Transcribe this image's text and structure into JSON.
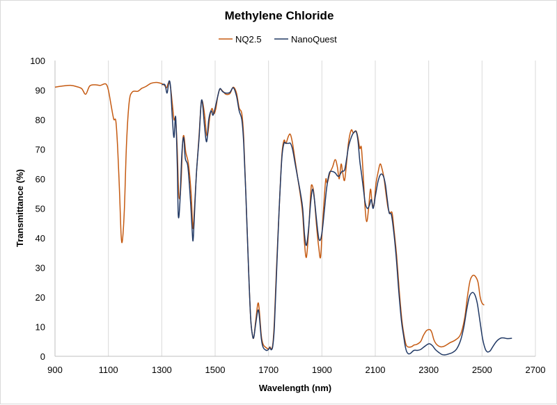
{
  "chart_data": {
    "type": "line",
    "title": "Methylene Chloride",
    "xlabel": "Wavelength (nm)",
    "ylabel": "Transmittance (%)",
    "xlim": [
      900,
      2700
    ],
    "ylim": [
      0,
      100
    ],
    "x_ticks": [
      900,
      1100,
      1300,
      1500,
      1700,
      1900,
      2100,
      2300,
      2500,
      2700
    ],
    "y_ticks": [
      0,
      10,
      20,
      30,
      40,
      50,
      60,
      70,
      80,
      90,
      100
    ],
    "grid": "vertical",
    "legend_position": "top-center",
    "series": [
      {
        "name": "NQ2.5",
        "color": "#c55a11",
        "points": [
          [
            900,
            91
          ],
          [
            930,
            91.4
          ],
          [
            960,
            91.6
          ],
          [
            980,
            91.2
          ],
          [
            1000,
            90.5
          ],
          [
            1015,
            88.6
          ],
          [
            1030,
            91.4
          ],
          [
            1050,
            91.8
          ],
          [
            1070,
            91.6
          ],
          [
            1090,
            92.1
          ],
          [
            1100,
            90
          ],
          [
            1110,
            85
          ],
          [
            1120,
            80.2
          ],
          [
            1128,
            79.5
          ],
          [
            1135,
            70
          ],
          [
            1142,
            55
          ],
          [
            1148,
            40.5
          ],
          [
            1153,
            39.5
          ],
          [
            1160,
            50
          ],
          [
            1168,
            72
          ],
          [
            1178,
            86
          ],
          [
            1190,
            89.4
          ],
          [
            1210,
            89.6
          ],
          [
            1225,
            90.6
          ],
          [
            1240,
            91.2
          ],
          [
            1260,
            92.3
          ],
          [
            1280,
            92.6
          ],
          [
            1300,
            92.2
          ],
          [
            1310,
            91.6
          ],
          [
            1318,
            90.8
          ],
          [
            1325,
            92.4
          ],
          [
            1332,
            91.5
          ],
          [
            1340,
            85
          ],
          [
            1346,
            80
          ],
          [
            1352,
            80.2
          ],
          [
            1358,
            70
          ],
          [
            1363,
            56
          ],
          [
            1368,
            53.5
          ],
          [
            1373,
            60
          ],
          [
            1378,
            72
          ],
          [
            1383,
            74.5
          ],
          [
            1390,
            69
          ],
          [
            1400,
            65
          ],
          [
            1410,
            55
          ],
          [
            1416,
            44
          ],
          [
            1420,
            46
          ],
          [
            1430,
            62
          ],
          [
            1440,
            75
          ],
          [
            1447,
            85
          ],
          [
            1452,
            86.3
          ],
          [
            1460,
            82
          ],
          [
            1468,
            75
          ],
          [
            1473,
            75.5
          ],
          [
            1480,
            81
          ],
          [
            1488,
            83.8
          ],
          [
            1495,
            82
          ],
          [
            1502,
            83.5
          ],
          [
            1510,
            88
          ],
          [
            1518,
            90.3
          ],
          [
            1530,
            89.5
          ],
          [
            1540,
            88.6
          ],
          [
            1555,
            88.8
          ],
          [
            1568,
            91
          ],
          [
            1580,
            89
          ],
          [
            1590,
            84
          ],
          [
            1600,
            82
          ],
          [
            1607,
            74
          ],
          [
            1615,
            55
          ],
          [
            1625,
            30
          ],
          [
            1633,
            13
          ],
          [
            1640,
            7
          ],
          [
            1645,
            6.5
          ],
          [
            1652,
            12
          ],
          [
            1660,
            17.8
          ],
          [
            1665,
            16
          ],
          [
            1673,
            7
          ],
          [
            1680,
            4
          ],
          [
            1690,
            3
          ],
          [
            1700,
            2.5
          ],
          [
            1705,
            3.2
          ],
          [
            1710,
            2.5
          ],
          [
            1716,
            4
          ],
          [
            1722,
            12
          ],
          [
            1730,
            30
          ],
          [
            1740,
            50
          ],
          [
            1750,
            68
          ],
          [
            1758,
            73
          ],
          [
            1765,
            72
          ],
          [
            1775,
            74.5
          ],
          [
            1782,
            75
          ],
          [
            1790,
            72
          ],
          [
            1800,
            66
          ],
          [
            1810,
            60
          ],
          [
            1820,
            54
          ],
          [
            1828,
            48
          ],
          [
            1835,
            38
          ],
          [
            1842,
            33.5
          ],
          [
            1850,
            42
          ],
          [
            1858,
            55
          ],
          [
            1862,
            58
          ],
          [
            1870,
            55
          ],
          [
            1880,
            44
          ],
          [
            1888,
            37
          ],
          [
            1895,
            33.5
          ],
          [
            1902,
            44
          ],
          [
            1910,
            55
          ],
          [
            1915,
            60
          ],
          [
            1920,
            58.6
          ],
          [
            1930,
            62
          ],
          [
            1940,
            64
          ],
          [
            1950,
            66.5
          ],
          [
            1958,
            64
          ],
          [
            1965,
            60
          ],
          [
            1972,
            65
          ],
          [
            1978,
            62
          ],
          [
            1985,
            59.5
          ],
          [
            1993,
            66
          ],
          [
            2000,
            72.5
          ],
          [
            2010,
            76.5
          ],
          [
            2018,
            75.5
          ],
          [
            2028,
            76.2
          ],
          [
            2035,
            74
          ],
          [
            2042,
            70.3
          ],
          [
            2048,
            70.5
          ],
          [
            2055,
            61
          ],
          [
            2062,
            50
          ],
          [
            2068,
            45.5
          ],
          [
            2075,
            50
          ],
          [
            2082,
            56.5
          ],
          [
            2088,
            52
          ],
          [
            2095,
            51
          ],
          [
            2102,
            58
          ],
          [
            2110,
            62
          ],
          [
            2118,
            65
          ],
          [
            2125,
            63.5
          ],
          [
            2133,
            60
          ],
          [
            2140,
            55
          ],
          [
            2148,
            50
          ],
          [
            2155,
            48.5
          ],
          [
            2163,
            48.5
          ],
          [
            2170,
            43
          ],
          [
            2180,
            34
          ],
          [
            2190,
            22
          ],
          [
            2200,
            12
          ],
          [
            2208,
            7
          ],
          [
            2215,
            4
          ],
          [
            2222,
            3.2
          ],
          [
            2235,
            3.2
          ],
          [
            2245,
            3.8
          ],
          [
            2255,
            4
          ],
          [
            2270,
            5
          ],
          [
            2280,
            7
          ],
          [
            2292,
            8.7
          ],
          [
            2305,
            9
          ],
          [
            2312,
            8
          ],
          [
            2320,
            5.5
          ],
          [
            2330,
            4
          ],
          [
            2345,
            3.2
          ],
          [
            2360,
            3.5
          ],
          [
            2380,
            4.6
          ],
          [
            2400,
            5.5
          ],
          [
            2420,
            7.5
          ],
          [
            2435,
            13
          ],
          [
            2445,
            20
          ],
          [
            2455,
            25.5
          ],
          [
            2465,
            27.3
          ],
          [
            2475,
            27
          ],
          [
            2485,
            25
          ],
          [
            2493,
            20
          ],
          [
            2500,
            18
          ],
          [
            2508,
            17.3
          ]
        ]
      },
      {
        "name": "NanoQuest",
        "color": "#203864",
        "points": [
          [
            1300,
            91.8
          ],
          [
            1312,
            91.8
          ],
          [
            1320,
            89
          ],
          [
            1327,
            93
          ],
          [
            1333,
            91
          ],
          [
            1340,
            80
          ],
          [
            1346,
            74
          ],
          [
            1352,
            81
          ],
          [
            1358,
            65
          ],
          [
            1362,
            47.5
          ],
          [
            1368,
            52
          ],
          [
            1375,
            68
          ],
          [
            1382,
            74
          ],
          [
            1388,
            67
          ],
          [
            1398,
            64
          ],
          [
            1408,
            52
          ],
          [
            1413,
            44
          ],
          [
            1417,
            39
          ],
          [
            1421,
            45
          ],
          [
            1430,
            62
          ],
          [
            1440,
            74
          ],
          [
            1447,
            85
          ],
          [
            1452,
            86
          ],
          [
            1460,
            78
          ],
          [
            1466,
            73
          ],
          [
            1470,
            73.5
          ],
          [
            1476,
            80
          ],
          [
            1485,
            83
          ],
          [
            1492,
            81.5
          ],
          [
            1500,
            84
          ],
          [
            1510,
            88
          ],
          [
            1518,
            90.5
          ],
          [
            1528,
            89.5
          ],
          [
            1540,
            89
          ],
          [
            1555,
            89.2
          ],
          [
            1568,
            90.8
          ],
          [
            1580,
            88
          ],
          [
            1590,
            83
          ],
          [
            1600,
            80
          ],
          [
            1607,
            72
          ],
          [
            1615,
            55
          ],
          [
            1625,
            30
          ],
          [
            1633,
            13
          ],
          [
            1640,
            7
          ],
          [
            1645,
            6.5
          ],
          [
            1652,
            11
          ],
          [
            1660,
            15.5
          ],
          [
            1665,
            14
          ],
          [
            1673,
            6
          ],
          [
            1680,
            3
          ],
          [
            1692,
            2
          ],
          [
            1700,
            2.3
          ],
          [
            1705,
            3
          ],
          [
            1710,
            2.2
          ],
          [
            1716,
            3.5
          ],
          [
            1722,
            10
          ],
          [
            1730,
            28
          ],
          [
            1740,
            50
          ],
          [
            1750,
            67
          ],
          [
            1758,
            72
          ],
          [
            1765,
            72
          ],
          [
            1775,
            72
          ],
          [
            1782,
            72
          ],
          [
            1790,
            70
          ],
          [
            1800,
            65
          ],
          [
            1810,
            60
          ],
          [
            1820,
            55
          ],
          [
            1828,
            50
          ],
          [
            1835,
            41
          ],
          [
            1842,
            37.5
          ],
          [
            1850,
            43
          ],
          [
            1858,
            52
          ],
          [
            1865,
            56.5
          ],
          [
            1872,
            53
          ],
          [
            1880,
            46
          ],
          [
            1888,
            40
          ],
          [
            1895,
            39.5
          ],
          [
            1902,
            43
          ],
          [
            1910,
            50
          ],
          [
            1918,
            57
          ],
          [
            1928,
            62
          ],
          [
            1938,
            62.5
          ],
          [
            1950,
            62
          ],
          [
            1958,
            61
          ],
          [
            1965,
            61
          ],
          [
            1975,
            62.5
          ],
          [
            1985,
            63
          ],
          [
            1993,
            67
          ],
          [
            2000,
            71
          ],
          [
            2010,
            74
          ],
          [
            2018,
            75.5
          ],
          [
            2028,
            76
          ],
          [
            2035,
            73
          ],
          [
            2042,
            66
          ],
          [
            2048,
            62
          ],
          [
            2055,
            57
          ],
          [
            2062,
            52
          ],
          [
            2070,
            50
          ],
          [
            2078,
            51
          ],
          [
            2085,
            53
          ],
          [
            2092,
            50
          ],
          [
            2100,
            54
          ],
          [
            2110,
            59
          ],
          [
            2120,
            61.5
          ],
          [
            2130,
            61
          ],
          [
            2138,
            58
          ],
          [
            2145,
            53
          ],
          [
            2152,
            48.5
          ],
          [
            2160,
            48
          ],
          [
            2168,
            43
          ],
          [
            2178,
            34
          ],
          [
            2188,
            22
          ],
          [
            2198,
            12
          ],
          [
            2206,
            7
          ],
          [
            2212,
            3.5
          ],
          [
            2218,
            1.5
          ],
          [
            2225,
            0.8
          ],
          [
            2232,
            1
          ],
          [
            2245,
            2
          ],
          [
            2258,
            2
          ],
          [
            2270,
            2.3
          ],
          [
            2283,
            3.2
          ],
          [
            2297,
            4.1
          ],
          [
            2305,
            4.2
          ],
          [
            2315,
            3.5
          ],
          [
            2325,
            2.3
          ],
          [
            2338,
            1.3
          ],
          [
            2350,
            0.6
          ],
          [
            2362,
            0.5
          ],
          [
            2375,
            0.8
          ],
          [
            2390,
            1.3
          ],
          [
            2405,
            2.5
          ],
          [
            2420,
            5.5
          ],
          [
            2432,
            10
          ],
          [
            2442,
            15.5
          ],
          [
            2452,
            20
          ],
          [
            2462,
            21.5
          ],
          [
            2472,
            21
          ],
          [
            2482,
            18
          ],
          [
            2492,
            12
          ],
          [
            2502,
            6
          ],
          [
            2512,
            2.5
          ],
          [
            2520,
            1.5
          ],
          [
            2530,
            1.8
          ],
          [
            2540,
            3.2
          ],
          [
            2552,
            4.8
          ],
          [
            2562,
            5.7
          ],
          [
            2572,
            6.2
          ],
          [
            2582,
            6.2
          ],
          [
            2592,
            6
          ],
          [
            2602,
            6
          ],
          [
            2612,
            6.1
          ]
        ]
      }
    ]
  }
}
